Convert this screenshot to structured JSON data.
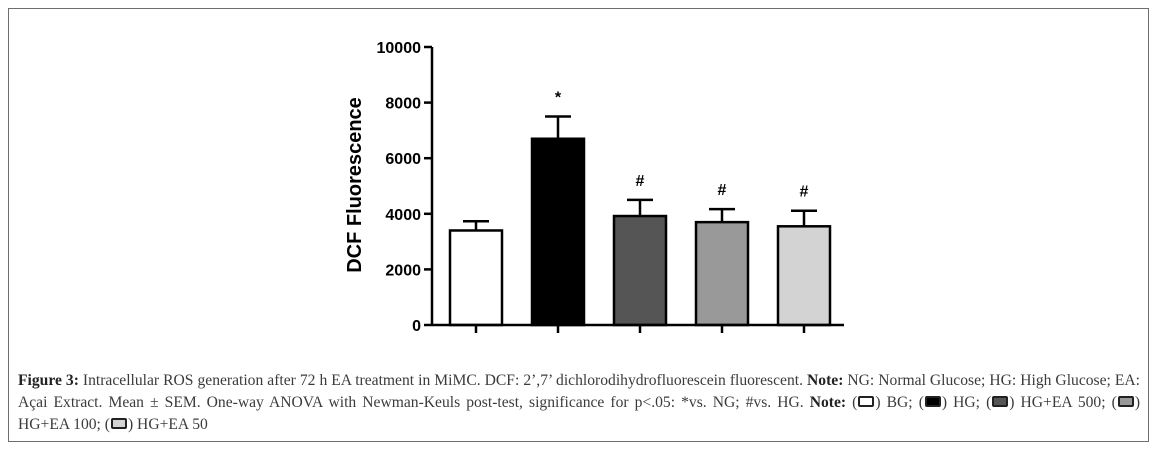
{
  "chart_data": {
    "type": "bar",
    "categories": [
      "BG",
      "HG",
      "HG+EA 500",
      "HG+EA 100",
      "HG+EA 50"
    ],
    "values": [
      3400,
      6700,
      3920,
      3700,
      3550
    ],
    "errors": [
      330,
      800,
      580,
      470,
      560
    ],
    "significance": [
      "",
      "*",
      "#",
      "#",
      "#"
    ],
    "ylabel": "DCF Fluorescence",
    "xlabel": "",
    "ylim": [
      0,
      10000
    ],
    "yticks": [
      0,
      2000,
      4000,
      6000,
      8000,
      10000
    ],
    "ytick_labels": [
      "0",
      "2000",
      "4000",
      "6000",
      "8000",
      "10000"
    ],
    "colors": [
      "#ffffff",
      "#000000",
      "#555555",
      "#999999",
      "#d3d3d3"
    ]
  },
  "caption": {
    "figure_label": "Figure 3:",
    "text1": " Intracellular ROS generation after 72 h EA treatment in MiMC. DCF: 2’,7’ dichlorodihydrofluorescein fluorescent. ",
    "note_label": "Note:",
    "text2": " NG: Normal Glucose; HG: High Glucose; EA: Açai Extract. Mean ± SEM. One-way ANOVA with Newman-Keuls post-test, significance for p<.05: *vs. NG; #vs. HG. ",
    "note_label2": "Note:",
    "key": [
      {
        "label": ") BG; ",
        "color": "#ffffff"
      },
      {
        "label": ") HG; ",
        "color": "#000000"
      },
      {
        "label": ") HG+EA 500; ",
        "color": "#555555"
      },
      {
        "label": ") HG+EA 100; ",
        "color": "#999999"
      },
      {
        "label": ") HG+EA 50",
        "color": "#d3d3d3"
      }
    ]
  }
}
